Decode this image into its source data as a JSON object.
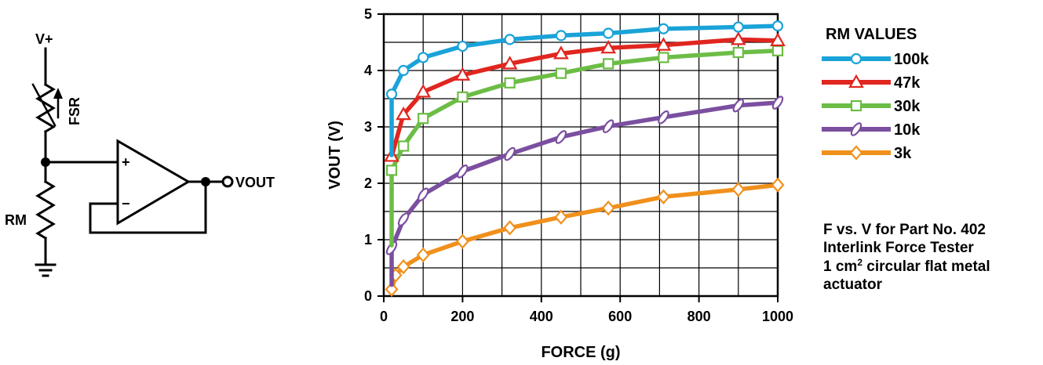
{
  "circuit": {
    "supply_label": "V+",
    "fsr_label": "FSR",
    "rm_label": "RM",
    "plus_label": "+",
    "minus_label": "−",
    "out_label": "VOUT"
  },
  "legend": {
    "title": "RM VALUES"
  },
  "caption": {
    "line1": "F vs. V for Part No. 402",
    "line2": "Interlink Force Tester",
    "line3_prefix": "1 cm",
    "line3_sup": "2",
    "line3_suffix": " circular flat metal",
    "line4": "actuator"
  },
  "chart_data": {
    "type": "line",
    "xlabel": "FORCE (g)",
    "ylabel": "VOUT (V)",
    "xlim": [
      0,
      1000
    ],
    "ylim": [
      0,
      5
    ],
    "xticks": [
      0,
      200,
      400,
      600,
      800,
      1000
    ],
    "yticks": [
      0,
      1,
      2,
      3,
      4,
      5
    ],
    "grid": true,
    "legend_position": "right",
    "series": [
      {
        "name": "100k",
        "color": "#1aa3d8",
        "marker": "circle",
        "x": [
          20,
          20,
          50,
          100,
          200,
          320,
          450,
          570,
          710,
          900,
          1000
        ],
        "y": [
          2.5,
          3.58,
          4.0,
          4.23,
          4.43,
          4.55,
          4.62,
          4.66,
          4.74,
          4.77,
          4.79
        ]
      },
      {
        "name": "47k",
        "color": "#e0261f",
        "marker": "triangle",
        "x": [
          20,
          50,
          100,
          200,
          320,
          450,
          570,
          710,
          900,
          1000
        ],
        "y": [
          2.48,
          3.22,
          3.62,
          3.92,
          4.12,
          4.3,
          4.4,
          4.45,
          4.55,
          4.53
        ]
      },
      {
        "name": "30k",
        "color": "#6cbd45",
        "marker": "square",
        "x": [
          20,
          20,
          50,
          100,
          200,
          320,
          450,
          570,
          710,
          900,
          1000
        ],
        "y": [
          0.9,
          2.23,
          2.66,
          3.15,
          3.53,
          3.78,
          3.95,
          4.12,
          4.23,
          4.32,
          4.35
        ]
      },
      {
        "name": "10k",
        "color": "#7b4fa0",
        "marker": "slash-ellipse",
        "x": [
          20,
          20,
          50,
          100,
          200,
          320,
          450,
          570,
          710,
          900,
          1000
        ],
        "y": [
          0.2,
          0.85,
          1.36,
          1.8,
          2.21,
          2.52,
          2.82,
          3.01,
          3.17,
          3.38,
          3.43
        ]
      },
      {
        "name": "3k",
        "color": "#f0901c",
        "marker": "diamond",
        "x": [
          20,
          20,
          30,
          50,
          100,
          200,
          320,
          450,
          570,
          710,
          900,
          1000
        ],
        "y": [
          0.05,
          0.12,
          0.37,
          0.52,
          0.73,
          0.97,
          1.21,
          1.4,
          1.56,
          1.76,
          1.89,
          1.97
        ]
      }
    ]
  }
}
